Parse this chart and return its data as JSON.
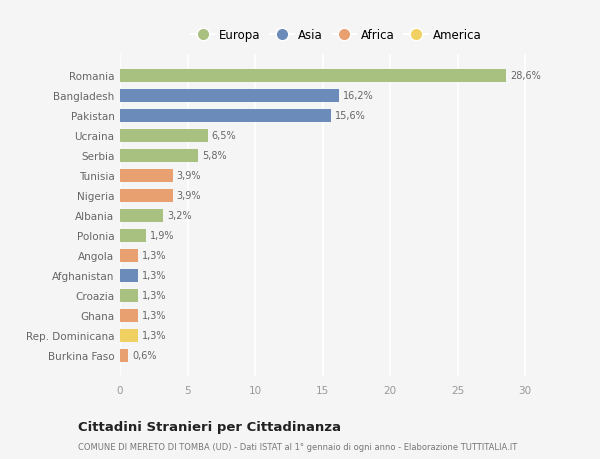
{
  "countries": [
    "Romania",
    "Bangladesh",
    "Pakistan",
    "Ucraina",
    "Serbia",
    "Tunisia",
    "Nigeria",
    "Albania",
    "Polonia",
    "Angola",
    "Afghanistan",
    "Croazia",
    "Ghana",
    "Rep. Dominicana",
    "Burkina Faso"
  ],
  "values": [
    28.6,
    16.2,
    15.6,
    6.5,
    5.8,
    3.9,
    3.9,
    3.2,
    1.9,
    1.3,
    1.3,
    1.3,
    1.3,
    1.3,
    0.6
  ],
  "labels": [
    "28,6%",
    "16,2%",
    "15,6%",
    "6,5%",
    "5,8%",
    "3,9%",
    "3,9%",
    "3,2%",
    "1,9%",
    "1,3%",
    "1,3%",
    "1,3%",
    "1,3%",
    "1,3%",
    "0,6%"
  ],
  "continents": [
    "Europa",
    "Asia",
    "Asia",
    "Europa",
    "Europa",
    "Africa",
    "Africa",
    "Europa",
    "Europa",
    "Africa",
    "Asia",
    "Europa",
    "Africa",
    "America",
    "Africa"
  ],
  "continent_colors": {
    "Europa": "#a8c080",
    "Asia": "#6b8cba",
    "Africa": "#e8a070",
    "America": "#f0d060"
  },
  "legend_order": [
    "Europa",
    "Asia",
    "Africa",
    "America"
  ],
  "title": "Cittadini Stranieri per Cittadinanza",
  "subtitle": "COMUNE DI MERETO DI TOMBA (UD) - Dati ISTAT al 1° gennaio di ogni anno - Elaborazione TUTTITALIA.IT",
  "xlim": [
    0,
    32
  ],
  "xticks": [
    0,
    5,
    10,
    15,
    20,
    25,
    30
  ],
  "background_color": "#f5f5f5",
  "grid_color": "#ffffff",
  "bar_height": 0.65
}
